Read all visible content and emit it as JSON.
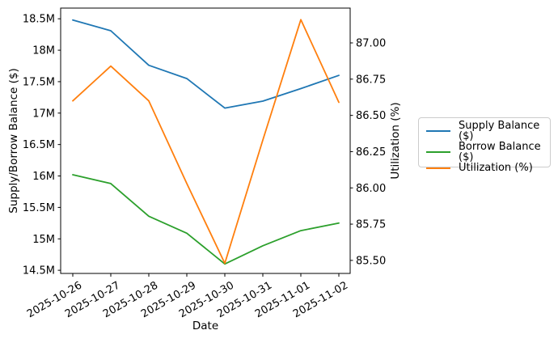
{
  "chart_data": {
    "type": "line",
    "xlabel": "Date",
    "ylabel_left": "Supply/Borrow Balance ($)",
    "ylabel_right": "Utilization (%)",
    "x_dates": [
      "2025-10-26",
      "2025-10-27",
      "2025-10-28",
      "2025-10-29",
      "2025-10-30",
      "2025-10-31",
      "2025-11-01",
      "2025-11-02"
    ],
    "series": [
      {
        "name": "Supply Balance ($)",
        "axis": "left",
        "color": "#1f77b4",
        "values": [
          18.48,
          18.31,
          17.76,
          17.55,
          17.08,
          17.19,
          17.39,
          17.6
        ]
      },
      {
        "name": "Borrow Balance ($)",
        "axis": "left",
        "color": "#2ca02c",
        "values": [
          16.02,
          15.88,
          15.36,
          15.09,
          14.6,
          14.89,
          15.13,
          15.25
        ]
      },
      {
        "name": "Utilization (%)",
        "axis": "right",
        "color": "#ff7f0e",
        "values": [
          86.6,
          86.84,
          86.6,
          86.03,
          85.48,
          86.33,
          87.16,
          86.59
        ]
      }
    ],
    "left_axis": {
      "tick_values": [
        14.5,
        15,
        15.5,
        16,
        16.5,
        17,
        17.5,
        18,
        18.5
      ],
      "tick_labels": [
        "14.5M",
        "15M",
        "15.5M",
        "16M",
        "16.5M",
        "17M",
        "17.5M",
        "18M",
        "18.5M"
      ],
      "ylim": [
        14.45,
        18.67
      ]
    },
    "right_axis": {
      "tick_values": [
        85.5,
        85.75,
        86.0,
        86.25,
        86.5,
        86.75,
        87.0
      ],
      "tick_labels": [
        "85.50",
        "85.75",
        "86.00",
        "86.25",
        "86.50",
        "86.75",
        "87.00"
      ],
      "ylim": [
        85.41,
        87.24
      ]
    },
    "legend": {
      "position": "outside-center-right",
      "entries": [
        "Supply Balance ($)",
        "Borrow Balance ($)",
        "Utilization (%)"
      ]
    },
    "grid": false,
    "x_tick_rotation_deg": 30
  }
}
